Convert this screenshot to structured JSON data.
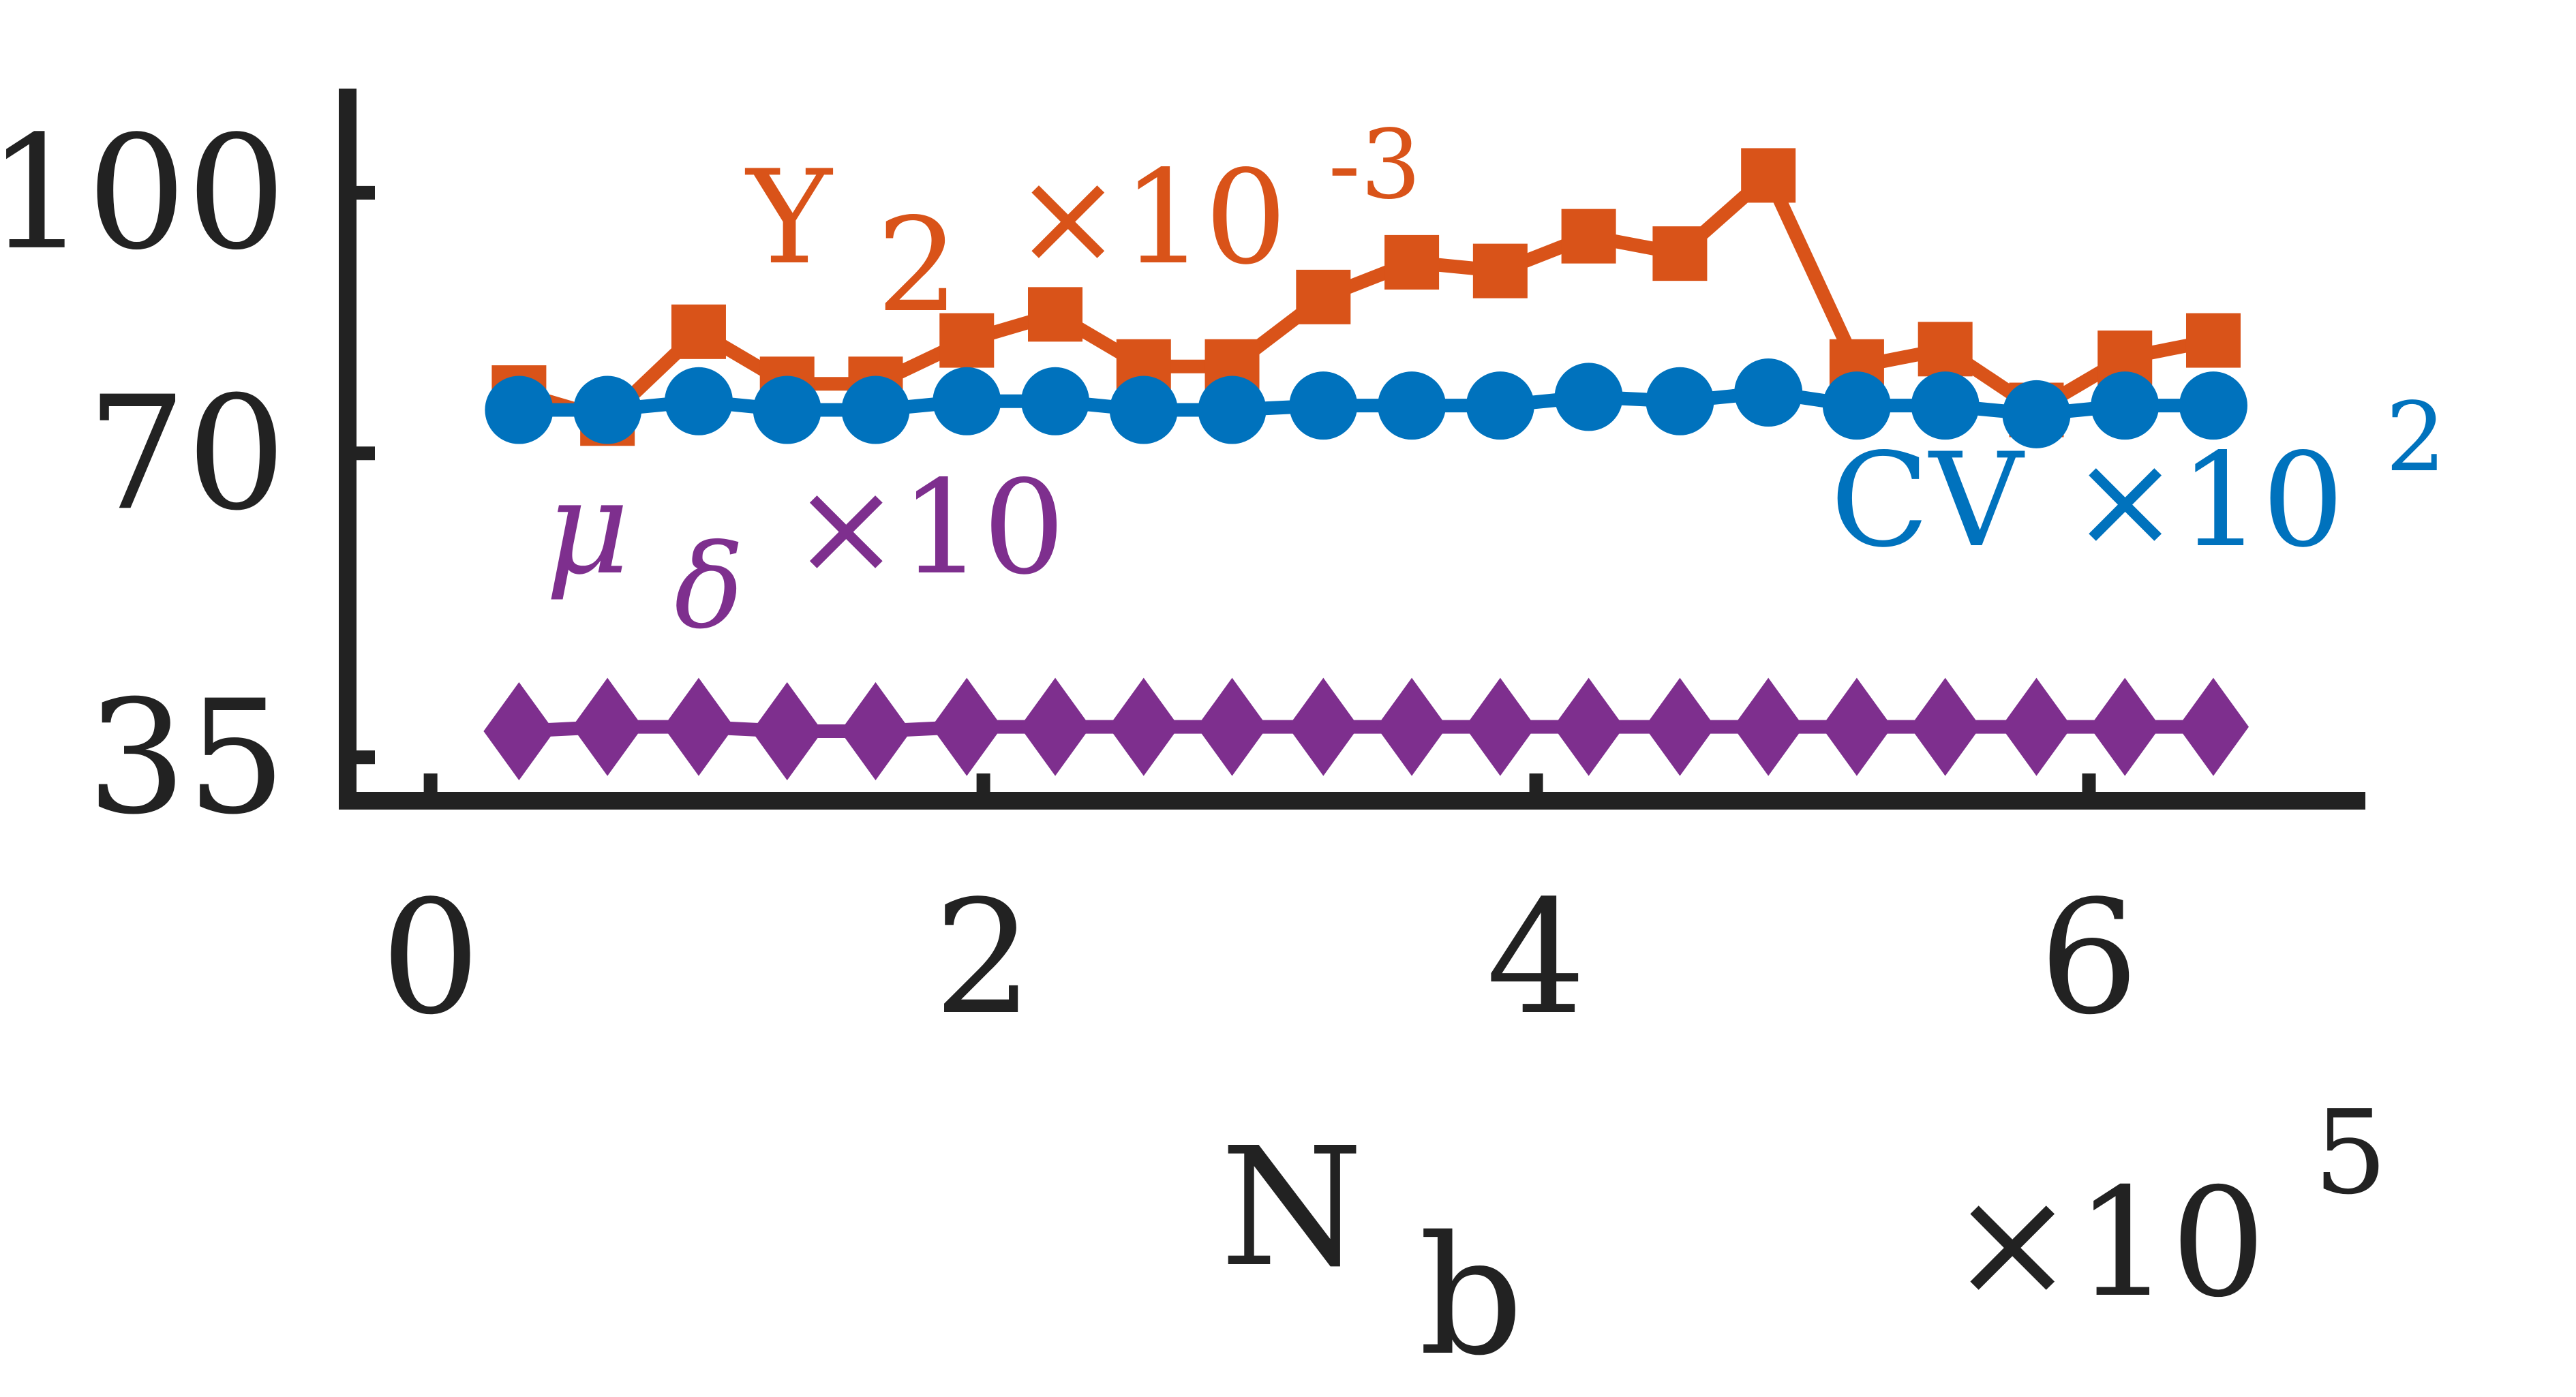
{
  "chart_data": {
    "type": "line",
    "xlabel": "N",
    "xlabel_sub": "b",
    "x_multiplier_base": "×10",
    "x_multiplier_exp": "5",
    "xlim": [
      -0.3,
      7.0
    ],
    "ylim": [
      30,
      112
    ],
    "xticks": [
      0,
      2,
      4,
      6
    ],
    "yticks": [
      35,
      70,
      100
    ],
    "x": [
      0.32,
      0.64,
      0.97,
      1.29,
      1.61,
      1.94,
      2.26,
      2.58,
      2.9,
      3.23,
      3.55,
      3.87,
      4.19,
      4.52,
      4.84,
      5.16,
      5.48,
      5.81,
      6.13,
      6.45
    ],
    "series": [
      {
        "name": "Y",
        "name_sub": "2",
        "name_mult": "×10",
        "name_exp": "-3",
        "color": "#D95319",
        "marker": "square",
        "values": [
          77,
          74,
          84,
          78,
          78,
          83,
          86,
          80,
          80,
          88,
          92,
          91,
          95,
          93,
          102,
          80,
          82,
          75,
          81,
          83
        ]
      },
      {
        "name": "CV",
        "name_mult": "×10",
        "name_exp": "2",
        "color": "#0072BD",
        "marker": "circle",
        "values": [
          75,
          75,
          76,
          75,
          75,
          76,
          76,
          75,
          75,
          75.5,
          75.5,
          75.5,
          76.5,
          76,
          77,
          75.5,
          75.5,
          74.5,
          75.5,
          75.5
        ]
      },
      {
        "name": "μ",
        "name_sub": "δ",
        "name_mult": "×10",
        "color": "#7E2F8E",
        "marker": "diamond",
        "values": [
          38,
          38.5,
          38.5,
          38,
          38,
          38.5,
          38.5,
          38.5,
          38.5,
          38.5,
          38.5,
          38.5,
          38.5,
          38.5,
          38.5,
          38.5,
          38.5,
          38.5,
          38.5,
          38.5
        ]
      }
    ]
  }
}
